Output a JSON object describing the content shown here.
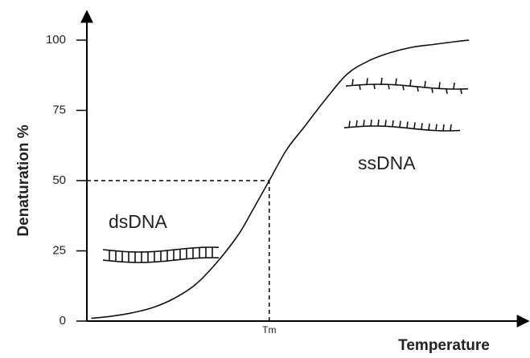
{
  "chart_data": {
    "type": "line",
    "x": [
      1,
      5,
      10,
      15,
      20,
      25,
      30,
      35,
      38,
      42,
      46,
      50,
      55,
      60,
      65,
      70,
      75,
      80,
      85,
      88
    ],
    "values": [
      1,
      1.6,
      2.8,
      4.7,
      8,
      13,
      21,
      31,
      39,
      50,
      61,
      69,
      79,
      88,
      92.7,
      95.6,
      97.5,
      98.5,
      99.5,
      100
    ],
    "color": "#111111",
    "xlim": [
      0,
      100
    ],
    "xticks": [
      {
        "value": 42,
        "label": "Tm"
      }
    ],
    "ylim": [
      0,
      100
    ],
    "yticks": [
      0,
      25,
      50,
      75,
      100
    ],
    "xlabel": "Temperature",
    "ylabel": "Denaturation %",
    "annotations": [
      "dsDNA",
      "ssDNA"
    ]
  }
}
